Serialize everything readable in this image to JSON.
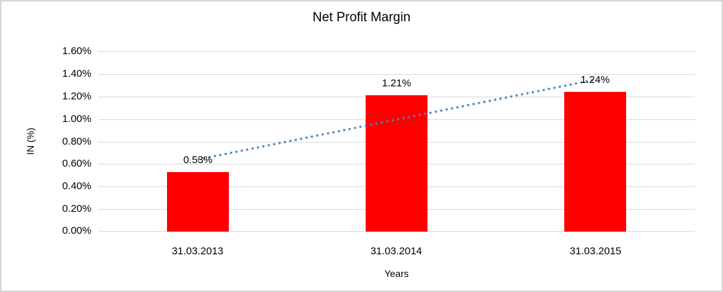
{
  "chart_data": {
    "type": "bar",
    "title": "Net Profit Margin",
    "xlabel": "Years",
    "ylabel": "IN (%)",
    "categories": [
      "31.03.2013",
      "31.03.2014",
      "31.03.2015"
    ],
    "values": [
      0.53,
      1.21,
      1.24
    ],
    "data_labels": [
      "0.53%",
      "1.21%",
      "1.24%"
    ],
    "yticks": [
      "1.60%",
      "1.40%",
      "1.20%",
      "1.00%",
      "0.80%",
      "0.60%",
      "0.40%",
      "0.20%",
      "0.00%"
    ],
    "ylim": [
      0,
      1.6
    ],
    "grid": true,
    "legend": "none",
    "bar_color": "#FF0000",
    "gridline_color": "#D9D9D9",
    "text_color": "#000000",
    "trendline": {
      "type": "linear",
      "style": "dotted",
      "color": "#4F81BD",
      "start_value": 0.64,
      "end_value": 1.35
    }
  }
}
